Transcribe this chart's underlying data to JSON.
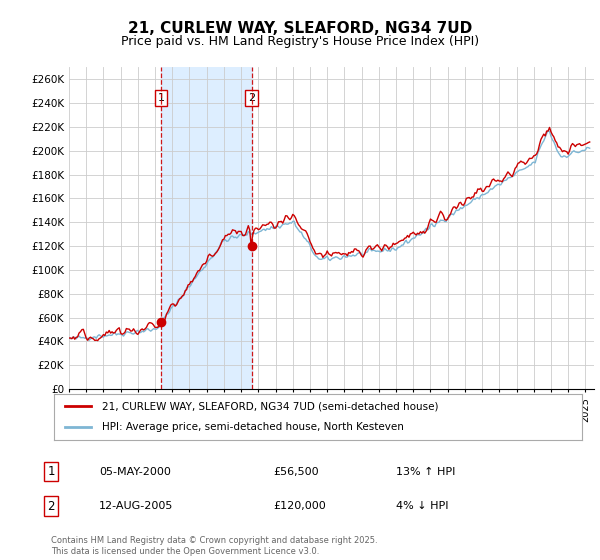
{
  "title": "21, CURLEW WAY, SLEAFORD, NG34 7UD",
  "subtitle": "Price paid vs. HM Land Registry's House Price Index (HPI)",
  "title_fontsize": 11,
  "subtitle_fontsize": 9,
  "ylabel_ticks": [
    "£0",
    "£20K",
    "£40K",
    "£60K",
    "£80K",
    "£100K",
    "£120K",
    "£140K",
    "£160K",
    "£180K",
    "£200K",
    "£220K",
    "£240K",
    "£260K"
  ],
  "ytick_values": [
    0,
    20000,
    40000,
    60000,
    80000,
    100000,
    120000,
    140000,
    160000,
    180000,
    200000,
    220000,
    240000,
    260000
  ],
  "ylim": [
    0,
    270000
  ],
  "xlim_start": 1995.0,
  "xlim_end": 2025.5,
  "xtick_years": [
    1995,
    1996,
    1997,
    1998,
    1999,
    2000,
    2001,
    2002,
    2003,
    2004,
    2005,
    2006,
    2007,
    2008,
    2009,
    2010,
    2011,
    2012,
    2013,
    2014,
    2015,
    2016,
    2017,
    2018,
    2019,
    2020,
    2021,
    2022,
    2023,
    2024,
    2025
  ],
  "sale1_x": 2000.35,
  "sale1_y": 56500,
  "sale1_label": "1",
  "sale2_x": 2005.62,
  "sale2_y": 120000,
  "sale2_label": "2",
  "shade_x1": 2000.35,
  "shade_x2": 2005.62,
  "red_line_color": "#cc0000",
  "blue_line_color": "#7eb6d4",
  "shade_color": "#ddeeff",
  "grid_color": "#cccccc",
  "background_color": "#ffffff",
  "legend1_text": "21, CURLEW WAY, SLEAFORD, NG34 7UD (semi-detached house)",
  "legend2_text": "HPI: Average price, semi-detached house, North Kesteven",
  "annot1_num": "1",
  "annot1_date": "05-MAY-2000",
  "annot1_price": "£56,500",
  "annot1_hpi": "13% ↑ HPI",
  "annot2_num": "2",
  "annot2_date": "12-AUG-2005",
  "annot2_price": "£120,000",
  "annot2_hpi": "4% ↓ HPI",
  "footer": "Contains HM Land Registry data © Crown copyright and database right 2025.\nThis data is licensed under the Open Government Licence v3.0."
}
